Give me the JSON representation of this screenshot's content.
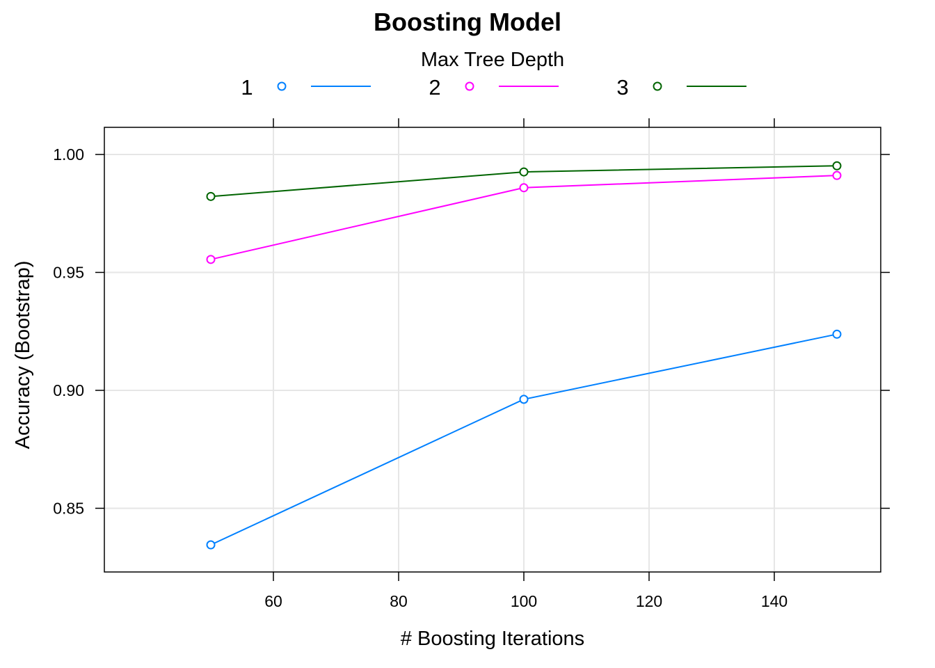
{
  "chart_data": {
    "type": "line",
    "title": "Boosting Model",
    "xlabel": "# Boosting Iterations",
    "ylabel": "Accuracy (Bootstrap)",
    "legend": {
      "title": "Max Tree Depth",
      "placement": "top"
    },
    "grid": true,
    "x": [
      50,
      100,
      150
    ],
    "xlim": [
      33,
      157
    ],
    "ylim": [
      0.823,
      1.0115
    ],
    "x_ticks": [
      60,
      80,
      100,
      120,
      140
    ],
    "y_ticks": [
      0.85,
      0.9,
      0.95,
      1.0
    ],
    "x_tick_labels": [
      "60",
      "80",
      "100",
      "120",
      "140"
    ],
    "y_tick_labels": [
      "0.85",
      "0.90",
      "0.95",
      "1.00"
    ],
    "series": [
      {
        "name": "1",
        "color": "#0080ff",
        "values": [
          0.8345,
          0.8962,
          0.9238
        ]
      },
      {
        "name": "2",
        "color": "#ff00ff",
        "values": [
          0.9555,
          0.9859,
          0.9911
        ]
      },
      {
        "name": "3",
        "color": "#006400",
        "values": [
          0.9822,
          0.9926,
          0.9952
        ]
      }
    ],
    "grid_color": "#e6e6e6",
    "marker": "open-circle"
  }
}
